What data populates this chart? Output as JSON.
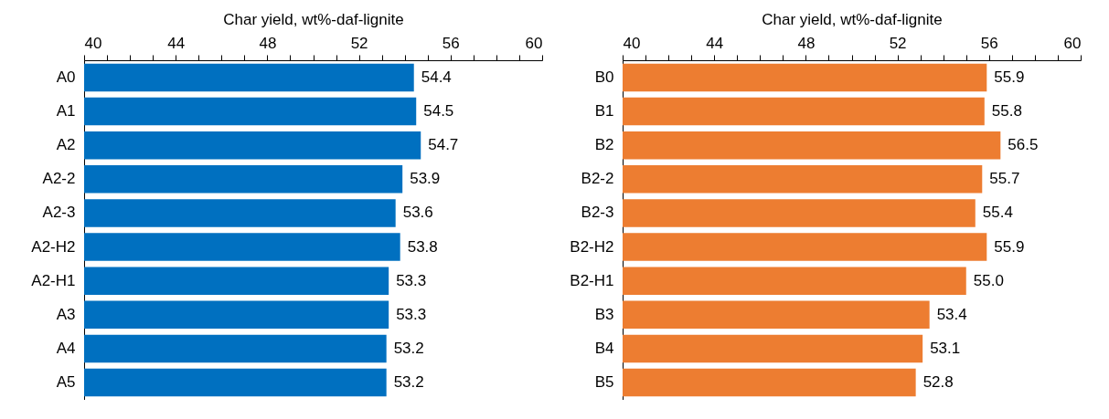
{
  "chart_data": [
    {
      "type": "bar",
      "orientation": "horizontal",
      "xlabel": "Char yield, wt%-daf-lignite",
      "categories": [
        "A0",
        "A1",
        "A2",
        "A2-2",
        "A2-3",
        "A2-H2",
        "A2-H1",
        "A3",
        "A4",
        "A5"
      ],
      "values": [
        54.4,
        54.5,
        54.7,
        53.9,
        53.6,
        53.8,
        53.3,
        53.3,
        53.2,
        53.2
      ],
      "value_labels": [
        "54.4",
        "54.5",
        "54.7",
        "53.9",
        "53.6",
        "53.8",
        "53.3",
        "53.3",
        "53.2",
        "53.2"
      ],
      "color": "#0070c0",
      "xlim": [
        40,
        60
      ],
      "xticks": [
        40,
        {
          "value": 41,
          "label": null
        },
        {
          "value": 42,
          "label": null
        },
        {
          "value": 43,
          "label": null
        },
        44,
        {
          "value": 45,
          "label": null
        },
        {
          "value": 46,
          "label": null
        },
        {
          "value": 47,
          "label": null
        },
        48,
        {
          "value": 49,
          "label": null
        },
        {
          "value": 50,
          "label": null
        },
        {
          "value": 51,
          "label": null
        },
        52,
        {
          "value": 53,
          "label": null
        },
        {
          "value": 54,
          "label": null
        },
        {
          "value": 55,
          "label": null
        },
        56,
        {
          "value": 57,
          "label": null
        },
        {
          "value": 58,
          "label": null
        },
        {
          "value": 59,
          "label": null
        },
        60
      ],
      "grid": false
    },
    {
      "type": "bar",
      "orientation": "horizontal",
      "xlabel": "Char yield, wt%-daf-lignite",
      "categories": [
        "B0",
        "B1",
        "B2",
        "B2-2",
        "B2-3",
        "B2-H2",
        "B2-H1",
        "B3",
        "B4",
        "B5"
      ],
      "values": [
        55.9,
        55.8,
        56.5,
        55.7,
        55.4,
        55.9,
        55.0,
        53.4,
        53.1,
        52.8
      ],
      "value_labels": [
        "55.9",
        "55.8",
        "56.5",
        "55.7",
        "55.4",
        "55.9",
        "55.0",
        "53.4",
        "53.1",
        "52.8"
      ],
      "color": "#ed7d31",
      "xlim": [
        40,
        60
      ],
      "xticks": [
        40,
        {
          "value": 41,
          "label": null
        },
        {
          "value": 42,
          "label": null
        },
        {
          "value": 43,
          "label": null
        },
        44,
        {
          "value": 45,
          "label": null
        },
        {
          "value": 46,
          "label": null
        },
        {
          "value": 47,
          "label": null
        },
        48,
        {
          "value": 49,
          "label": null
        },
        {
          "value": 50,
          "label": null
        },
        {
          "value": 51,
          "label": null
        },
        52,
        {
          "value": 53,
          "label": null
        },
        {
          "value": 54,
          "label": null
        },
        {
          "value": 55,
          "label": null
        },
        56,
        {
          "value": 57,
          "label": null
        },
        {
          "value": 58,
          "label": null
        },
        {
          "value": 59,
          "label": null
        },
        60
      ],
      "grid": false
    }
  ]
}
